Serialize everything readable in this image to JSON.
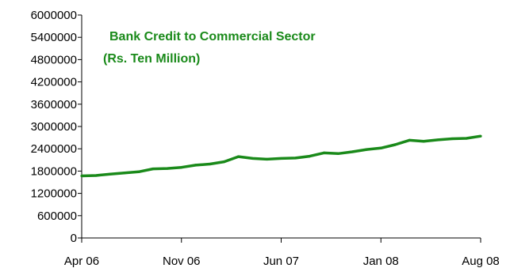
{
  "chart_data": {
    "type": "line",
    "title": "Bank Credit to Commercial  Sector",
    "subtitle": "(Rs. Ten Million)",
    "xlabel": "",
    "ylabel": "",
    "ylim": [
      0,
      6000000
    ],
    "y_ticks": [
      0,
      600000,
      1200000,
      1800000,
      2400000,
      3000000,
      3600000,
      4200000,
      4800000,
      5400000,
      6000000
    ],
    "y_tick_labels": [
      "0",
      "600000",
      "1200000",
      "1800000",
      "2400000",
      "3000000",
      "3600000",
      "4200000",
      "4800000",
      "5400000",
      "6000000"
    ],
    "x_ticks": [
      "2006-04",
      "2006-11",
      "2007-06",
      "2008-01",
      "2008-08"
    ],
    "x_tick_labels": [
      "Apr 06",
      "Nov 06",
      "Jun 07",
      "Jan 08",
      "Aug 08"
    ],
    "xlim": [
      "2006-04",
      "2008-08"
    ],
    "grid": false,
    "legend": "none",
    "line_color": "#1a8a1a",
    "title_color": "#1a8a1a",
    "series": [
      {
        "x": [
          "2006-04",
          "2006-05",
          "2006-06",
          "2006-07",
          "2006-08",
          "2006-09",
          "2006-10",
          "2006-11",
          "2006-12",
          "2007-01",
          "2007-02",
          "2007-03",
          "2007-04",
          "2007-05",
          "2007-06",
          "2007-07",
          "2007-08",
          "2007-09",
          "2007-10",
          "2007-11",
          "2007-12",
          "2008-01",
          "2008-02",
          "2008-03",
          "2008-04",
          "2008-05",
          "2008-06",
          "2008-07",
          "2008-08"
        ],
        "values": [
          1670000,
          1680000,
          1720000,
          1750000,
          1780000,
          1860000,
          1870000,
          1900000,
          1960000,
          1990000,
          2050000,
          2190000,
          2140000,
          2120000,
          2140000,
          2150000,
          2200000,
          2290000,
          2270000,
          2320000,
          2380000,
          2420000,
          2510000,
          2630000,
          2600000,
          2640000,
          2670000,
          2680000,
          2740000
        ]
      }
    ]
  }
}
